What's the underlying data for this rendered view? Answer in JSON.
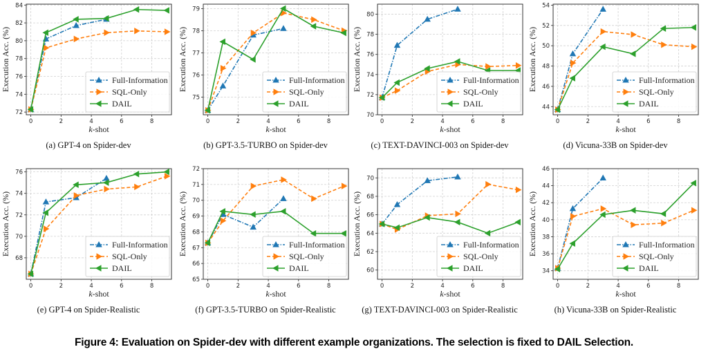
{
  "figure_caption": "Figure 4: Evaluation on Spider-dev with different example organizations. The selection is fixed to DAIL Selection.",
  "colors": {
    "full_information": "#1f77b4",
    "sql_only": "#ff7f0e",
    "dail": "#2ca02c"
  },
  "legend": [
    "Full-Information",
    "SQL-Only",
    "DAIL"
  ],
  "chart_data": [
    {
      "type": "line",
      "id": "a",
      "caption": "(a)  GPT-4 on Spider-dev",
      "xlabel": "k-shot",
      "ylabel": "Execution Acc. (%)",
      "xlim": [
        -0.3,
        9.3
      ],
      "ylim": [
        71.7,
        84.1
      ],
      "xticks": [
        0,
        2,
        4,
        6,
        8
      ],
      "yticks": [
        72,
        74,
        76,
        78,
        80,
        82,
        84
      ],
      "grid": true,
      "legend_position": "lower-right",
      "series": [
        {
          "name": "Full-Information",
          "x": [
            0,
            1,
            3,
            5
          ],
          "y": [
            72.3,
            80.2,
            81.7,
            82.4
          ]
        },
        {
          "name": "SQL-Only",
          "x": [
            0,
            1,
            3,
            5,
            7,
            9
          ],
          "y": [
            72.3,
            79.2,
            80.2,
            80.9,
            81.1,
            81.0
          ]
        },
        {
          "name": "DAIL",
          "x": [
            0,
            1,
            3,
            5,
            7,
            9
          ],
          "y": [
            72.3,
            80.9,
            82.4,
            82.5,
            83.5,
            83.4
          ]
        }
      ]
    },
    {
      "type": "line",
      "id": "b",
      "caption": "(b)  GPT-3.5-TURBO on Spider-dev",
      "xlabel": "k-shot",
      "ylabel": "Execution Acc. (%)",
      "xlim": [
        -0.3,
        9.3
      ],
      "ylim": [
        74.2,
        79.2
      ],
      "xticks": [
        0,
        2,
        4,
        6,
        8
      ],
      "yticks": [
        75,
        76,
        77,
        78,
        79
      ],
      "grid": true,
      "legend_position": "lower-right",
      "series": [
        {
          "name": "Full-Information",
          "x": [
            0,
            1,
            3,
            5
          ],
          "y": [
            74.4,
            75.5,
            77.8,
            78.1
          ]
        },
        {
          "name": "SQL-Only",
          "x": [
            0,
            1,
            3,
            5,
            7,
            9
          ],
          "y": [
            74.4,
            76.3,
            77.9,
            78.8,
            78.5,
            78.0
          ]
        },
        {
          "name": "DAIL",
          "x": [
            0,
            1,
            3,
            5,
            7,
            9
          ],
          "y": [
            74.4,
            77.5,
            76.7,
            79.0,
            78.2,
            77.9
          ]
        }
      ]
    },
    {
      "type": "line",
      "id": "c",
      "caption": "(c)  TEXT-DAVINCI-003 on Spider-dev",
      "xlabel": "k-shot",
      "ylabel": "Execution Acc. (%)",
      "xlim": [
        -0.3,
        9.3
      ],
      "ylim": [
        70,
        81
      ],
      "xticks": [
        0,
        2,
        4,
        6,
        8
      ],
      "yticks": [
        70,
        72,
        74,
        76,
        78,
        80
      ],
      "grid": true,
      "legend_position": "lower-right",
      "series": [
        {
          "name": "Full-Information",
          "x": [
            0,
            1,
            3,
            5
          ],
          "y": [
            71.7,
            76.9,
            79.5,
            80.5
          ]
        },
        {
          "name": "SQL-Only",
          "x": [
            0,
            1,
            3,
            5,
            7,
            9
          ],
          "y": [
            71.7,
            72.4,
            74.3,
            75.0,
            74.8,
            74.9
          ]
        },
        {
          "name": "DAIL",
          "x": [
            0,
            1,
            3,
            5,
            7,
            9
          ],
          "y": [
            71.7,
            73.2,
            74.6,
            75.3,
            74.4,
            74.4
          ]
        }
      ]
    },
    {
      "type": "line",
      "id": "d",
      "caption": "(d)  Vicuna-33B on Spider-dev",
      "xlabel": "k-shot",
      "ylabel": "Execution Acc. (%)",
      "xlim": [
        -0.3,
        9.3
      ],
      "ylim": [
        43.2,
        54.1
      ],
      "xticks": [
        0,
        2,
        4,
        6,
        8
      ],
      "yticks": [
        44,
        46,
        48,
        50,
        52,
        54
      ],
      "grid": true,
      "legend_position": "lower-right",
      "series": [
        {
          "name": "Full-Information",
          "x": [
            0,
            1,
            3
          ],
          "y": [
            43.7,
            49.2,
            53.6
          ]
        },
        {
          "name": "SQL-Only",
          "x": [
            0,
            1,
            3,
            5,
            7,
            9
          ],
          "y": [
            43.7,
            48.3,
            51.4,
            51.1,
            50.1,
            49.9
          ]
        },
        {
          "name": "DAIL",
          "x": [
            0,
            1,
            3,
            5,
            7,
            9
          ],
          "y": [
            43.7,
            46.8,
            49.9,
            49.2,
            51.7,
            51.8
          ]
        }
      ]
    },
    {
      "type": "line",
      "id": "e",
      "caption": "(e)  GPT-4 on Spider-Realistic",
      "xlabel": "k-shot",
      "ylabel": "Execution Acc. (%)",
      "xlim": [
        -0.3,
        9.3
      ],
      "ylim": [
        66.0,
        76.3
      ],
      "xticks": [
        0,
        2,
        4,
        6,
        8
      ],
      "yticks": [
        68,
        70,
        72,
        74,
        76
      ],
      "grid": true,
      "legend_position": "lower-right",
      "series": [
        {
          "name": "Full-Information",
          "x": [
            0,
            1,
            3,
            5
          ],
          "y": [
            66.5,
            73.2,
            73.6,
            75.4
          ]
        },
        {
          "name": "SQL-Only",
          "x": [
            0,
            1,
            3,
            5,
            7,
            9
          ],
          "y": [
            66.5,
            70.7,
            73.8,
            74.4,
            74.6,
            75.6
          ]
        },
        {
          "name": "DAIL",
          "x": [
            0,
            1,
            3,
            5,
            7,
            9
          ],
          "y": [
            66.5,
            72.2,
            74.8,
            75.0,
            75.8,
            76.0
          ]
        }
      ]
    },
    {
      "type": "line",
      "id": "f",
      "caption": "(f)  GPT-3.5-TURBO on Spider-Realistic",
      "xlabel": "k-shot",
      "ylabel": "Execution Acc. (%)",
      "xlim": [
        -0.3,
        9.3
      ],
      "ylim": [
        65,
        72
      ],
      "xticks": [
        0,
        2,
        4,
        6,
        8
      ],
      "yticks": [
        65,
        66,
        67,
        68,
        69,
        70,
        71,
        72
      ],
      "grid": true,
      "legend_position": "lower-right",
      "series": [
        {
          "name": "Full-Information",
          "x": [
            0,
            1,
            3,
            5
          ],
          "y": [
            67.3,
            69.1,
            68.3,
            70.1
          ]
        },
        {
          "name": "SQL-Only",
          "x": [
            0,
            1,
            3,
            5,
            7,
            9
          ],
          "y": [
            67.3,
            68.7,
            70.9,
            71.3,
            70.1,
            70.9
          ]
        },
        {
          "name": "DAIL",
          "x": [
            0,
            1,
            3,
            5,
            7,
            9
          ],
          "y": [
            67.3,
            69.3,
            69.1,
            69.3,
            67.9,
            67.9
          ]
        }
      ]
    },
    {
      "type": "line",
      "id": "g",
      "caption": "(g)  TEXT-DAVINCI-003 on Spider-Realistic",
      "xlabel": "k-shot",
      "ylabel": "Execution Acc. (%)",
      "xlim": [
        -0.3,
        9.3
      ],
      "ylim": [
        59,
        71
      ],
      "xticks": [
        0,
        2,
        4,
        6,
        8
      ],
      "yticks": [
        60,
        62,
        64,
        66,
        68,
        70
      ],
      "grid": true,
      "legend_position": "lower-right",
      "series": [
        {
          "name": "Full-Information",
          "x": [
            0,
            1,
            3,
            5
          ],
          "y": [
            65.0,
            67.1,
            69.7,
            70.1
          ]
        },
        {
          "name": "SQL-Only",
          "x": [
            0,
            1,
            3,
            5,
            7,
            9
          ],
          "y": [
            65.0,
            64.4,
            65.9,
            66.1,
            69.3,
            68.7
          ]
        },
        {
          "name": "DAIL",
          "x": [
            0,
            1,
            3,
            5,
            7,
            9
          ],
          "y": [
            65.0,
            64.6,
            65.7,
            65.2,
            64.0,
            65.2
          ]
        }
      ]
    },
    {
      "type": "line",
      "id": "h",
      "caption": "(h)  Vicuna-33B on Spider-Realistic",
      "xlabel": "k-shot",
      "ylabel": "Execution Acc. (%)",
      "xlim": [
        -0.3,
        9.3
      ],
      "ylim": [
        33,
        46
      ],
      "xticks": [
        0,
        2,
        4,
        6,
        8
      ],
      "yticks": [
        34,
        36,
        38,
        40,
        42,
        44,
        46
      ],
      "grid": true,
      "legend_position": "lower-right",
      "series": [
        {
          "name": "Full-Information",
          "x": [
            0,
            1,
            3
          ],
          "y": [
            34.3,
            41.3,
            44.9
          ]
        },
        {
          "name": "SQL-Only",
          "x": [
            0,
            1,
            3,
            5,
            7,
            9
          ],
          "y": [
            34.3,
            40.4,
            41.3,
            39.4,
            39.6,
            41.1
          ]
        },
        {
          "name": "DAIL",
          "x": [
            0,
            1,
            3,
            5,
            7,
            9
          ],
          "y": [
            34.2,
            37.2,
            40.6,
            41.1,
            40.7,
            44.3
          ]
        }
      ]
    }
  ]
}
